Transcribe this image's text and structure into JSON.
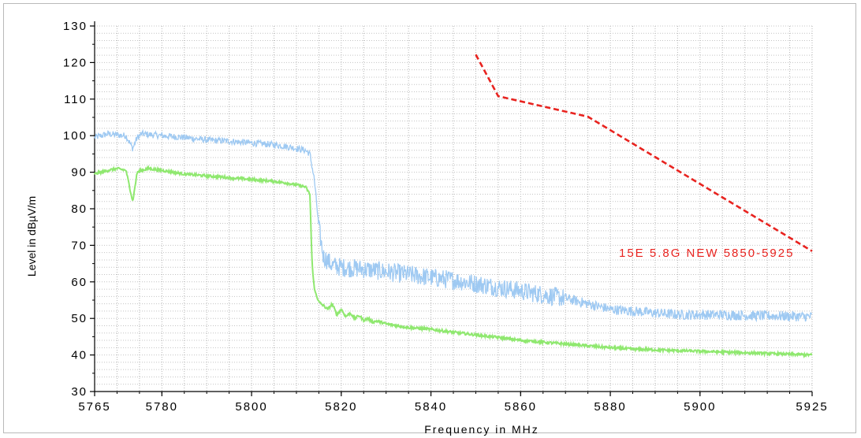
{
  "chart_data": {
    "type": "line",
    "xlabel": "Frequency in MHz",
    "ylabel": "Level in dBµV/m",
    "xlim": [
      5765,
      5925
    ],
    "ylim": [
      30,
      130
    ],
    "x_ticks": [
      "5765",
      "5780",
      "5800",
      "5820",
      "5840",
      "5860",
      "5880",
      "5900",
      "5925"
    ],
    "y_ticks": [
      "30",
      "40",
      "50",
      "60",
      "70",
      "80",
      "90",
      "100",
      "110",
      "120",
      "130"
    ],
    "grid": true,
    "series": [
      {
        "color": "#9ec9f2",
        "style": "noisy",
        "x": [
          5765,
          5768,
          5770,
          5772,
          5773.5,
          5774.5,
          5775.5,
          5777,
          5780,
          5785,
          5790,
          5795,
          5800,
          5805,
          5808,
          5810,
          5812,
          5813,
          5814,
          5815,
          5816,
          5818,
          5820,
          5825,
          5830,
          5835,
          5840,
          5845,
          5850,
          5855,
          5860,
          5865,
          5870,
          5875,
          5880,
          5885,
          5890,
          5895,
          5900,
          5905,
          5910,
          5915,
          5920,
          5925
        ],
        "y": [
          99.5,
          100.5,
          100.2,
          100,
          96.5,
          99.5,
          100.5,
          100.3,
          100,
          99.5,
          98.8,
          98.5,
          98,
          97.5,
          97,
          96.5,
          96,
          95,
          88,
          75,
          67,
          64.5,
          64,
          63.5,
          62.8,
          62,
          61.2,
          60.5,
          59.5,
          58.5,
          57.5,
          56.5,
          55.5,
          54,
          52.5,
          52,
          51.5,
          51,
          51,
          51,
          50.8,
          50.7,
          50.6,
          50.5
        ]
      },
      {
        "color": "#8fe86f",
        "style": "smooth",
        "x": [
          5765,
          5768,
          5770,
          5772,
          5773.5,
          5774.5,
          5775.5,
          5777,
          5780,
          5785,
          5790,
          5795,
          5800,
          5805,
          5808,
          5810,
          5812,
          5813,
          5813.5,
          5814,
          5815,
          5816,
          5817,
          5818,
          5819,
          5820,
          5821,
          5822,
          5823,
          5824,
          5825,
          5826,
          5827,
          5828,
          5830,
          5835,
          5840,
          5845,
          5850,
          5855,
          5860,
          5865,
          5870,
          5875,
          5880,
          5885,
          5890,
          5895,
          5900,
          5905,
          5910,
          5915,
          5920,
          5925
        ],
        "y": [
          89.5,
          90.5,
          91,
          90.5,
          82,
          90,
          90.5,
          91,
          90.5,
          89.5,
          89,
          88.5,
          88,
          87.5,
          87,
          86.5,
          86,
          84,
          65,
          58,
          54.5,
          53.5,
          52.5,
          54,
          51,
          52.5,
          50.5,
          51.5,
          50,
          50.8,
          49.5,
          50,
          49,
          49.3,
          48.5,
          47.5,
          47,
          46.2,
          45.5,
          44.8,
          44,
          43.5,
          43,
          42.5,
          42,
          41.6,
          41.4,
          41.2,
          41,
          40.8,
          40.6,
          40.4,
          40.2,
          40
        ]
      },
      {
        "color": "#e8231f",
        "style": "dashed",
        "name": "15E 5.8G NEW 5850-5925",
        "x": [
          5850,
          5855,
          5875,
          5925
        ],
        "y": [
          122.2,
          110.8,
          105.2,
          68.4
        ]
      }
    ]
  }
}
